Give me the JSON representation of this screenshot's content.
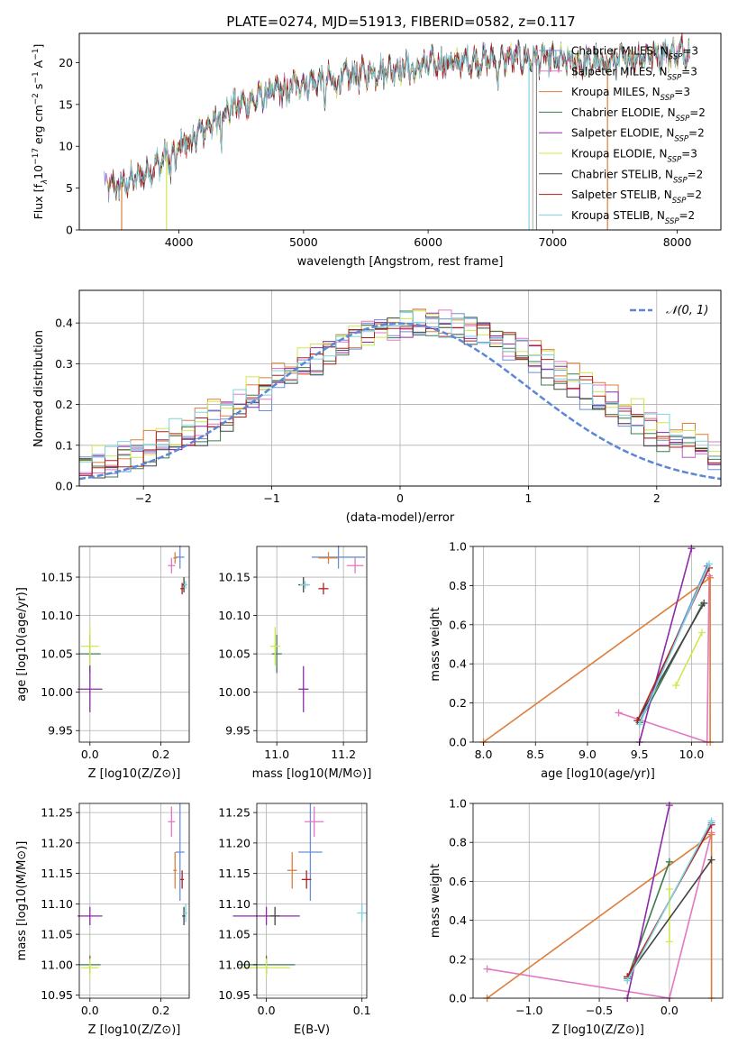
{
  "chart_data": [
    {
      "type": "line",
      "title": "PLATE=0274, MJD=51913, FIBERID=0582, z=0.117",
      "xlabel": "wavelength [Angstrom, rest frame]",
      "ylabel": "Flux [fλ10⁻¹⁷ erg cm⁻² s⁻¹ A⁻¹]",
      "xlim": [
        3200,
        8350
      ],
      "ylim": [
        0,
        23.5
      ],
      "xticks": [
        4000,
        5000,
        6000,
        7000,
        8000
      ],
      "yticks": [
        0,
        5,
        10,
        15,
        20
      ],
      "grid": false,
      "legend_position": "top-right",
      "continuum": {
        "x": [
          3400,
          3500,
          3600,
          3700,
          3800,
          3900,
          4000,
          4100,
          4200,
          4300,
          4400,
          4600,
          4800,
          5000,
          5200,
          5400,
          5600,
          5800,
          6000,
          6200,
          6400,
          6600,
          6800,
          7000,
          7200,
          7400,
          7600,
          7800,
          8000,
          8100
        ],
        "y": [
          5.5,
          5.2,
          5.8,
          6.5,
          7.5,
          8.8,
          10.0,
          11.0,
          12.0,
          13.5,
          14.5,
          15.5,
          16.8,
          17.5,
          18.0,
          18.5,
          19.0,
          19.5,
          19.8,
          20.0,
          20.2,
          20.5,
          20.5,
          20.3,
          20.0,
          20.0,
          20.5,
          21.0,
          21.2,
          21.5
        ]
      },
      "dropouts": [
        3540,
        3900,
        6810,
        7440
      ],
      "series": [
        {
          "name": "Chabrier MILES, N_SSP=3",
          "color": "#6b8fd9"
        },
        {
          "name": "Salpeter MILES, N_SSP=3",
          "color": "#e377c2"
        },
        {
          "name": "Kroupa MILES, N_SSP=3",
          "color": "#dd7e3b"
        },
        {
          "name": "Chabrier ELODIE, N_SSP=2",
          "color": "#3f7a4f"
        },
        {
          "name": "Salpeter ELODIE, N_SSP=2",
          "color": "#8e2aa8"
        },
        {
          "name": "Kroupa ELODIE, N_SSP=3",
          "color": "#cfe84f"
        },
        {
          "name": "Chabrier STELIB, N_SSP=2",
          "color": "#444444"
        },
        {
          "name": "Salpeter STELIB, N_SSP=2",
          "color": "#b0201c"
        },
        {
          "name": "Kroupa STELIB, N_SSP=2",
          "color": "#7fd3df"
        }
      ],
      "legend_labels": [
        {
          "pre": "Chabrier MILES, N",
          "sub": "SSP",
          "post": "=3"
        },
        {
          "pre": "Salpeter MILES, N",
          "sub": "SSP",
          "post": "=3"
        },
        {
          "pre": "Kroupa MILES, N",
          "sub": "SSP",
          "post": "=3"
        },
        {
          "pre": "Chabrier ELODIE, N",
          "sub": "SSP",
          "post": "=2"
        },
        {
          "pre": "Salpeter ELODIE, N",
          "sub": "SSP",
          "post": "=2"
        },
        {
          "pre": "Kroupa ELODIE, N",
          "sub": "SSP",
          "post": "=3"
        },
        {
          "pre": "Chabrier STELIB, N",
          "sub": "SSP",
          "post": "=2"
        },
        {
          "pre": "Salpeter STELIB, N",
          "sub": "SSP",
          "post": "=2"
        },
        {
          "pre": "Kroupa STELIB, N",
          "sub": "SSP",
          "post": "=2"
        }
      ],
      "ylabel_parts": {
        "pre": "Flux [f",
        "sub": "λ",
        "mid": "10",
        "exp1": "−17",
        "mid2": " erg cm",
        "exp2": "−2",
        "mid3": " s",
        "exp3": "−1",
        "mid4": " A",
        "exp4": "−1",
        "post": "]"
      }
    },
    {
      "type": "step-histogram",
      "xlabel": "(data-model)/error",
      "ylabel": "Normed distribution",
      "xlim": [
        -2.5,
        2.5
      ],
      "ylim": [
        0,
        0.48
      ],
      "xticks": [
        -2,
        -1,
        0,
        1,
        2
      ],
      "yticks": [
        0.0,
        0.1,
        0.2,
        0.3,
        0.4
      ],
      "grid": true,
      "bins": {
        "start": -2.5,
        "width": 0.1,
        "count": 50
      },
      "reference_curve": {
        "name": "𝒩(0,1)",
        "label": "N(0, 1)",
        "mean": 0,
        "sigma": 1,
        "color": "#5b87d6"
      },
      "legend_position": "top-right"
    },
    {
      "type": "scatter",
      "xlabel": "Z [log10(Z/Z⊙)]",
      "ylabel": "age [log10(age/yr)]",
      "xlim": [
        -0.03,
        0.28
      ],
      "ylim": [
        9.935,
        10.19
      ],
      "xticks": [
        0.0,
        0.2
      ],
      "yticks": [
        9.95,
        10.0,
        10.05,
        10.1,
        10.15
      ],
      "grid": true
    },
    {
      "type": "scatter",
      "xlabel": "mass [log10(M/M⊙)]",
      "xlim": [
        10.94,
        11.27
      ],
      "ylim": [
        9.935,
        10.19
      ],
      "xticks": [
        11.0,
        11.2
      ],
      "yticks": [
        9.95,
        10.0,
        10.05,
        10.1,
        10.15
      ],
      "grid": true
    },
    {
      "type": "line",
      "xlabel": "age [log10(age/yr)]",
      "ylabel": "mass weight",
      "xlim": [
        7.9,
        10.3
      ],
      "ylim": [
        0.0,
        1.0
      ],
      "xticks": [
        8.0,
        8.5,
        9.0,
        9.5,
        10.0
      ],
      "yticks": [
        0.0,
        0.2,
        0.4,
        0.6,
        0.8,
        1.0
      ],
      "grid": true
    },
    {
      "type": "scatter",
      "xlabel": "Z [log10(Z/Z⊙)]",
      "ylabel": "mass [log10(M/M⊙)]",
      "xlim": [
        -0.03,
        0.28
      ],
      "ylim": [
        10.945,
        11.265
      ],
      "xticks": [
        0.0,
        0.2
      ],
      "yticks": [
        10.95,
        11.0,
        11.05,
        11.1,
        11.15,
        11.2,
        11.25
      ],
      "grid": true
    },
    {
      "type": "scatter",
      "xlabel": "E(B-V)",
      "xlim": [
        -0.01,
        0.105
      ],
      "ylim": [
        10.945,
        11.265
      ],
      "xticks": [
        0.0,
        0.1
      ],
      "yticks": [
        10.95,
        11.0,
        11.05,
        11.1,
        11.15,
        11.2,
        11.25
      ],
      "grid": true
    },
    {
      "type": "line",
      "xlabel": "Z [log10(Z/Z⊙)]",
      "ylabel": "mass weight",
      "xlim": [
        -1.4,
        0.38
      ],
      "ylim": [
        0.0,
        1.0
      ],
      "xticks": [
        -1.0,
        -0.5,
        0.0
      ],
      "yticks": [
        0.0,
        0.2,
        0.4,
        0.6,
        0.8,
        1.0
      ],
      "grid": true
    }
  ],
  "models": [
    {
      "color": "#6b8fd9",
      "Z": 0.254,
      "dZ": 0.025,
      "age": 10.176,
      "dage": 0.03,
      "mass": 11.185,
      "dmass": 0.16,
      "ebv": 0.046,
      "dage_m": 0.02,
      "ssp": [
        {
          "age": 9.5,
          "Z": -0.3,
          "w": 0.1
        },
        {
          "age": 10.15,
          "Z": 0.3,
          "w": 0.9
        }
      ]
    },
    {
      "color": "#e377c2",
      "Z": 0.23,
      "dZ": 0.02,
      "age": 10.165,
      "dage": 0.02,
      "mass": 11.235,
      "dmass": 0.05,
      "ebv": 0.05,
      "dmass_e": 0.06,
      "ssp": [
        {
          "age": 9.3,
          "Z": -1.3,
          "w": 0.15
        },
        {
          "age": 10.15,
          "Z": 0.0,
          "w": 0.0
        },
        {
          "age": 10.17,
          "Z": 0.3,
          "w": 0.85
        }
      ]
    },
    {
      "color": "#dd7e3b",
      "Z": 0.24,
      "dZ": 0.01,
      "age": 10.175,
      "dage": 0.015,
      "mass": 11.155,
      "dmass": 0.06,
      "ebv": 0.027,
      "dmass_e": 0.06,
      "ssp": [
        {
          "age": 8.0,
          "Z": -1.3,
          "w": 0.0
        },
        {
          "age": 10.18,
          "Z": 0.3,
          "w": 0.84
        },
        {
          "age": 10.18,
          "Z": 0.3,
          "w": 0.0
        }
      ]
    },
    {
      "color": "#3f7a4f",
      "Z": 0.0,
      "dZ": 0.06,
      "age": 10.05,
      "dage": 0.05,
      "mass": 11.0,
      "dmass": 0.03,
      "ebv": 0.0,
      "ssp": [
        {
          "age": 9.5,
          "Z": -0.3,
          "w": 0.1
        },
        {
          "age": 10.1,
          "Z": 0.0,
          "w": 0.7
        }
      ]
    },
    {
      "color": "#8e2aa8",
      "Z": 0.0,
      "dZ": 0.07,
      "age": 10.004,
      "dage": 0.06,
      "mass": 11.08,
      "dmass": 0.03,
      "ebv": 0.0,
      "ssp": [
        {
          "age": 9.5,
          "Z": -0.3,
          "w": 0.0
        },
        {
          "age": 10.0,
          "Z": 0.0,
          "w": 0.99
        }
      ]
    },
    {
      "color": "#cfe84f",
      "Z": 0.0,
      "dZ": 0.05,
      "age": 10.06,
      "dage": 0.05,
      "mass": 10.995,
      "dmass": 0.03,
      "ebv": 0.0,
      "ssp": [
        {
          "age": 9.85,
          "Z": 0.0,
          "w": 0.29
        },
        {
          "age": 10.1,
          "Z": 0.0,
          "w": 0.56
        }
      ]
    },
    {
      "color": "#444444",
      "Z": 0.265,
      "dZ": 0.01,
      "age": 10.14,
      "dage": 0.02,
      "mass": 11.08,
      "dmass": 0.03,
      "ebv": 0.009,
      "ssp": [
        {
          "age": 9.48,
          "Z": -0.3,
          "w": 0.11
        },
        {
          "age": 10.12,
          "Z": 0.3,
          "w": 0.71
        }
      ]
    },
    {
      "color": "#b0201c",
      "Z": 0.26,
      "dZ": 0.01,
      "age": 10.135,
      "dage": 0.015,
      "mass": 11.14,
      "dmass": 0.03,
      "ebv": 0.042,
      "ssp": [
        {
          "age": 9.48,
          "Z": -0.3,
          "w": 0.11
        },
        {
          "age": 10.17,
          "Z": 0.3,
          "w": 0.89
        }
      ]
    },
    {
      "color": "#7fd3df",
      "Z": 0.27,
      "dZ": 0.01,
      "age": 10.14,
      "dage": 0.01,
      "mass": 11.085,
      "dmass": 0.03,
      "ebv": 0.1,
      "ssp": [
        {
          "age": 9.5,
          "Z": -0.3,
          "w": 0.09
        },
        {
          "age": 10.17,
          "Z": 0.3,
          "w": 0.91
        }
      ]
    }
  ]
}
